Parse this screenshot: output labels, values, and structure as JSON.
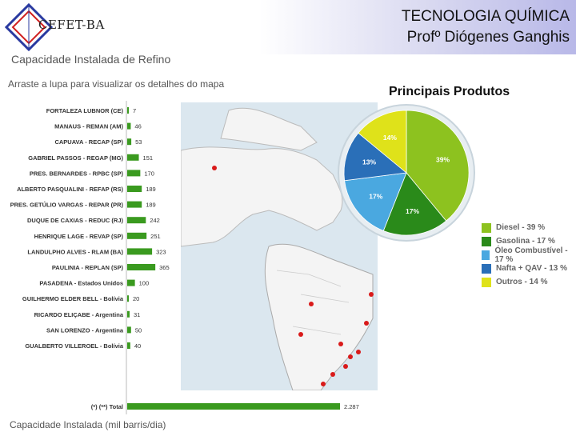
{
  "header": {
    "logo_text": "CEFET-BA",
    "title_line1": "TECNOLOGIA QUÍMICA",
    "title_line2": "Profº Diógenes Ganghis"
  },
  "capacity_title": "Capacidade Instalada de Refino",
  "map_instruction": "Arraste a lupa para visualizar os detalhes do mapa",
  "capacity_footer": "Capacidade Instalada (mil barris/dia)",
  "pie_title": "Principais Produtos",
  "colors": {
    "bar": "#3a9a1f",
    "diesel": "#8dc21f",
    "gasolina": "#2a8a1a",
    "oleo": "#4aa8e0",
    "nafta": "#2a6fb8",
    "outros": "#dfe21a"
  },
  "chart_data": [
    {
      "type": "bar",
      "orientation": "horizontal",
      "title": "Capacidade Instalada de Refino",
      "xlabel": "Capacidade Instalada (mil barris/dia)",
      "categories": [
        "FORTALEZA LUBNOR (CE)",
        "MANAUS - REMAN (AM)",
        "CAPUAVA - RECAP (SP)",
        "GABRIEL PASSOS - REGAP (MG)",
        "PRES. BERNARDES - RPBC (SP)",
        "ALBERTO PASQUALINI - REFAP (RS)",
        "PRES. GETÚLIO VARGAS - REPAR (PR)",
        "DUQUE DE CAXIAS - REDUC (RJ)",
        "HENRIQUE LAGE - REVAP (SP)",
        "LANDULPHO ALVES - RLAM (BA)",
        "PAULINIA - REPLAN (SP)",
        "PASADENA - Estados Unidos",
        "GUILHERMO ELDER BELL - Bolívia",
        "RICARDO ELIÇABE - Argentina",
        "SAN LORENZO - Argentina",
        "GUALBERTO VILLEROEL - Bolívia",
        "(*) (**) Total"
      ],
      "values": [
        7,
        46,
        53,
        151,
        170,
        189,
        189,
        242,
        251,
        323,
        365,
        100,
        20,
        31,
        50,
        40,
        2287
      ],
      "value_labels": [
        "7",
        "46",
        "53",
        "151",
        "170",
        "189",
        "189",
        "242",
        "251",
        "323",
        "365",
        "100",
        "20",
        "31",
        "50",
        "40",
        "2.287"
      ]
    },
    {
      "type": "pie",
      "title": "Principais Produtos",
      "categories": [
        "Diesel",
        "Gasolina",
        "Óleo Combustível",
        "Nafta + QAV",
        "Outros"
      ],
      "values": [
        39,
        17,
        17,
        13,
        14
      ],
      "slice_labels": [
        "39%",
        "17%",
        "17%",
        "13%",
        "14%"
      ],
      "legend": [
        "Diesel - 39 %",
        "Gasolina - 17 %",
        "Óleo Combustível - 17 %",
        "Nafta + QAV - 13 %",
        "Outros - 14 %"
      ],
      "legend_position": "bottom-right"
    }
  ]
}
